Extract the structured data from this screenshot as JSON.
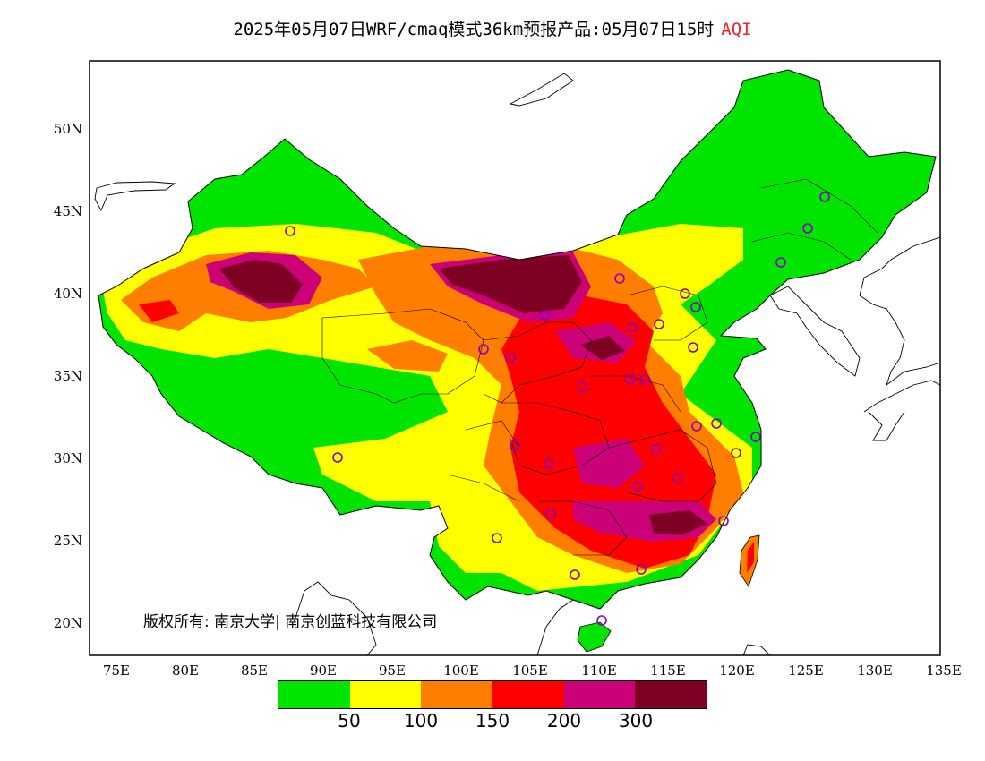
{
  "title": {
    "main": "2025年05月07日WRF/cmaq模式36km预报产品:05月07日15时",
    "variable": "AQI"
  },
  "axes": {
    "lat_labels": [
      "50N",
      "45N",
      "40N",
      "35N",
      "30N",
      "25N",
      "20N"
    ],
    "lon_labels": [
      "75E",
      "80E",
      "85E",
      "90E",
      "95E",
      "100E",
      "105E",
      "110E",
      "115E",
      "120E",
      "125E",
      "130E",
      "135E"
    ]
  },
  "copyright": "版权所有: 南京大学| 南京创蓝科技有限公司",
  "legend": {
    "colors": [
      "#00e400",
      "#ffff00",
      "#ff7e00",
      "#ff0000",
      "#cc0077",
      "#7e0023"
    ],
    "labels": [
      "50",
      "100",
      "150",
      "200",
      "300"
    ]
  },
  "stations_color": "#8b00c0",
  "map_colors": {
    "good": "#00e400",
    "moderate": "#ffff00",
    "usg": "#ff7e00",
    "unhealthy": "#ff0000",
    "very_unhealthy": "#cc0077",
    "hazardous": "#7e0023"
  }
}
